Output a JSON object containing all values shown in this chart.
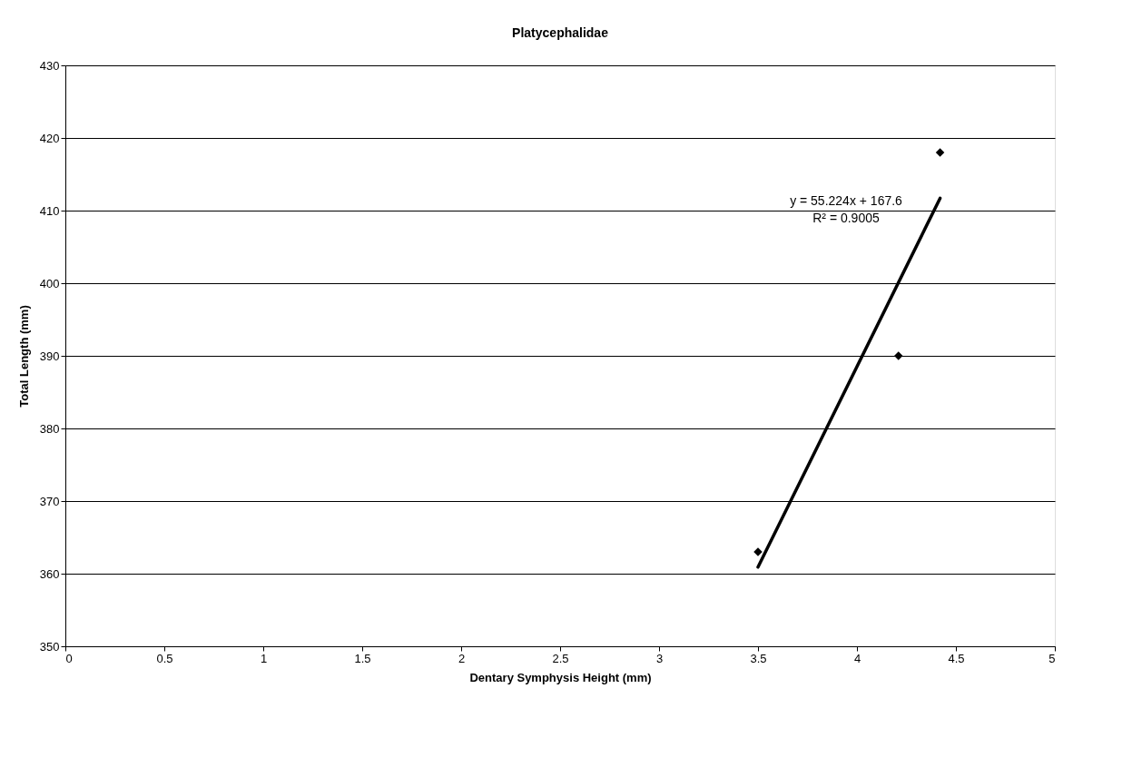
{
  "chart_data": {
    "type": "scatter",
    "title": "Platycephalidae",
    "xlabel": "Dentary Symphysis Height (mm)",
    "ylabel": "Total Length (mm)",
    "series": [
      {
        "type": "scatter",
        "color": "#000000",
        "x": [
          3.5,
          4.21,
          4.42
        ],
        "values": [
          363,
          390,
          418
        ],
        "marker": "diamond"
      },
      {
        "type": "line",
        "color": "#000000",
        "x": [
          3.5,
          4.42
        ],
        "values": [
          360.9,
          411.7
        ],
        "line_style": "solid"
      }
    ],
    "annotations": [
      "y = 55.224x + 167.6",
      "R² = 0.9005"
    ],
    "xlim": [
      0,
      5
    ],
    "xticks": [
      0,
      0.5,
      1,
      1.5,
      2,
      2.5,
      3,
      3.5,
      4,
      4.5,
      5
    ],
    "ylim": [
      350,
      430
    ],
    "yticks": [
      350,
      360,
      370,
      380,
      390,
      400,
      410,
      420,
      430
    ],
    "grid": "y",
    "legend": false
  }
}
